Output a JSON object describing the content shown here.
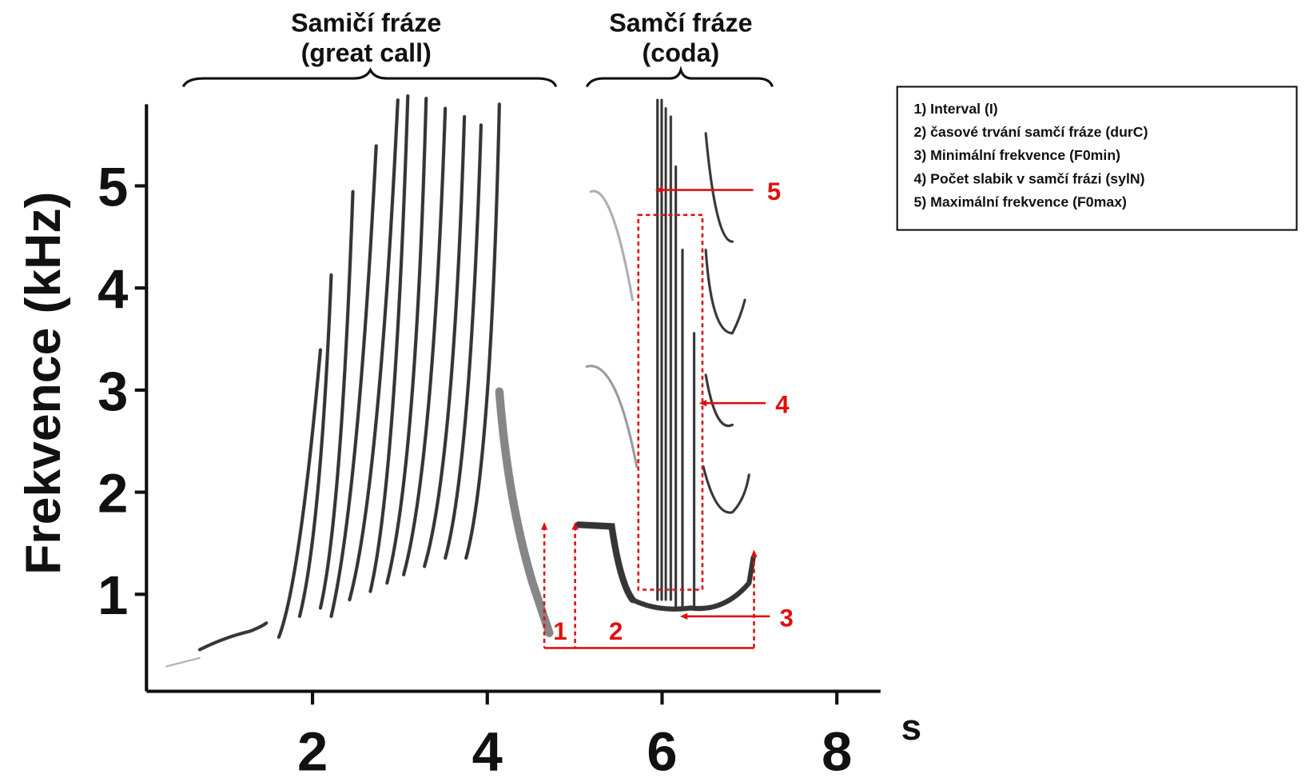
{
  "chart_data": {
    "type": "spectrogram",
    "xlabel": "s",
    "ylabel": "Frekvence (kHz)",
    "xlim": [
      0.1,
      8.5
    ],
    "ylim": [
      0.05,
      5.8
    ],
    "xticks": [
      2,
      4,
      6,
      8
    ],
    "yticks": [
      1,
      2,
      3,
      4,
      5
    ],
    "brackets": [
      {
        "lines": [
          "Samičí fráze",
          "(great call)"
        ]
      },
      {
        "lines": [
          "Samčí fráze",
          "(coda)"
        ]
      }
    ],
    "legend": [
      "1) Interval (I)",
      "2) časové trvání samčí fráze (durC)",
      "3) Minimální frekvence (F0min)",
      "4) Počet slabik v samčí frázi (sylN)",
      "5) Maximální frekvence (F0max)"
    ],
    "annotations": [
      "1",
      "2",
      "3",
      "4",
      "5"
    ]
  }
}
